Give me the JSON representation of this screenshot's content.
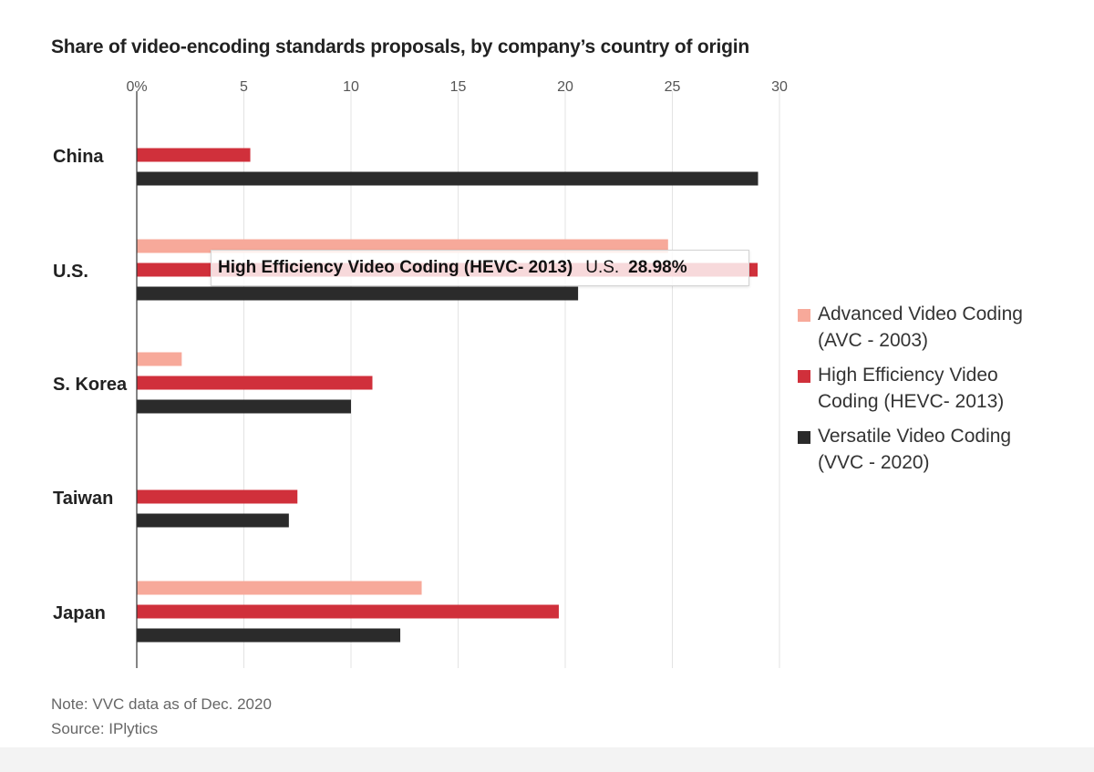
{
  "title": "Share of video-encoding standards proposals, by company’s country of origin",
  "chart_data": {
    "type": "bar",
    "orientation": "horizontal",
    "categories": [
      "China",
      "U.S.",
      "S. Korea",
      "Taiwan",
      "Japan"
    ],
    "series": [
      {
        "name": "Advanced Video Coding\n(AVC - 2003)",
        "color": "#f7a99a",
        "values": [
          null,
          24.8,
          2.1,
          null,
          13.3
        ]
      },
      {
        "name": "High Efficiency Video\nCoding (HEVC- 2013)",
        "color": "#d0303b",
        "values": [
          5.3,
          28.98,
          11.0,
          7.5,
          19.7
        ]
      },
      {
        "name": "Versatile Video Coding\n(VVC - 2020)",
        "color": "#2b2b2b",
        "values": [
          29.0,
          20.6,
          10.0,
          7.1,
          12.3
        ]
      }
    ],
    "xlim": [
      0,
      30
    ],
    "x_ticks": [
      "0%",
      "5",
      "10",
      "15",
      "20",
      "25",
      "30"
    ],
    "grid": true,
    "legend": "right"
  },
  "tooltip": {
    "series": "High Efficiency Video Coding (HEVC- 2013)",
    "category": "U.S.",
    "value": "28.98%"
  },
  "note": "Note: VVC data as of Dec. 2020",
  "source": "Source: IPlytics"
}
